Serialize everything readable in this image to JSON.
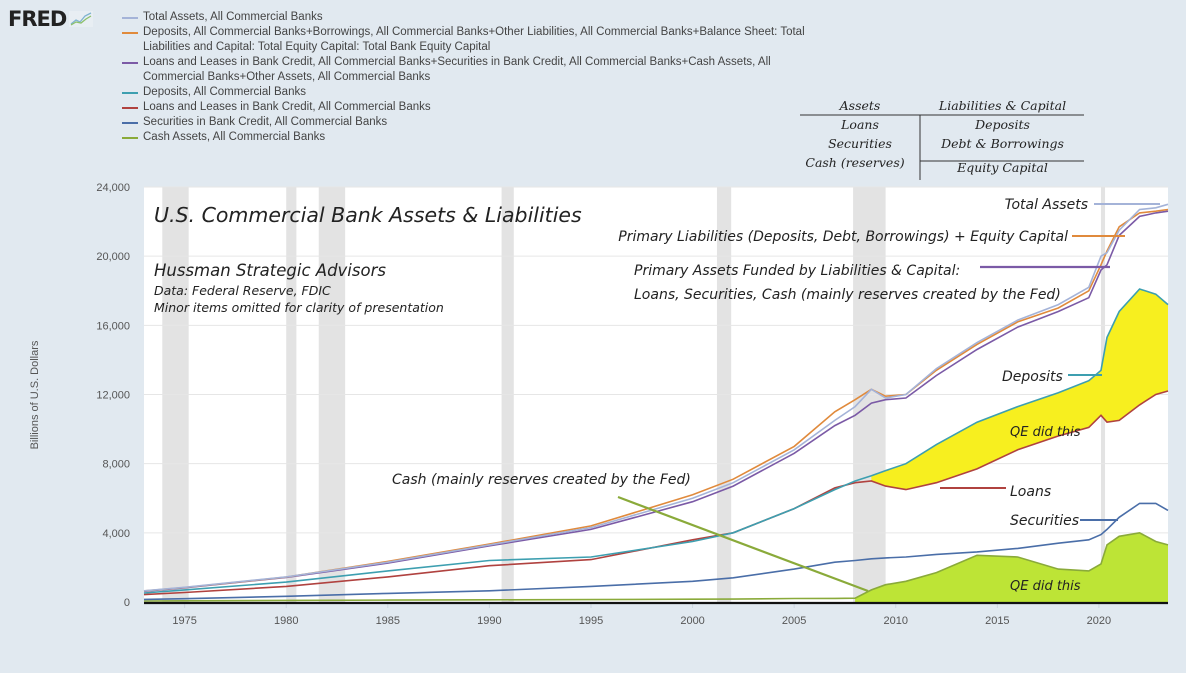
{
  "logo": {
    "text": "FRED",
    "icon": "line-chart-icon"
  },
  "legend": [
    {
      "label": "Total Assets, All Commercial Banks",
      "color": "#a4b3d8"
    },
    {
      "label": "Deposits, All Commercial Banks+Borrowings, All Commercial Banks+Other Liabilities, All Commercial Banks+Balance Sheet: Total Liabilities and Capital: Total Equity Capital: Total Bank Equity Capital",
      "color": "#e08a3c"
    },
    {
      "label": "Loans and Leases in Bank Credit, All Commercial Banks+Securities in Bank Credit, All Commercial Banks+Cash Assets, All Commercial Banks+Other Assets, All Commercial Banks",
      "color": "#7b5aa6"
    },
    {
      "label": "Deposits, All Commercial Banks",
      "color": "#3d9fb0"
    },
    {
      "label": "Loans and Leases in Bank Credit, All Commercial Banks",
      "color": "#b0423f"
    },
    {
      "label": "Securities in Bank Credit, All Commercial Banks",
      "color": "#4a6ea8"
    },
    {
      "label": "Cash Assets, All Commercial Banks",
      "color": "#8aaa3a"
    }
  ],
  "balance_sheet": {
    "assets_header": "Assets",
    "liabilities_header": "Liabilities & Capital",
    "assets": [
      "Loans",
      "Securities",
      "Cash (reserves)"
    ],
    "liabilities": [
      "Deposits",
      "Debt & Borrowings"
    ],
    "capital": "Equity Capital"
  },
  "chart_data": {
    "type": "line",
    "title": "U.S. Commercial Bank Assets & Liabilities",
    "subtitle": "Hussman Strategic Advisors",
    "source": "Data: Federal Reserve, FDIC",
    "note": "Minor items omitted for clarity of presentation",
    "xlabel": "",
    "ylabel": "Billions of U.S. Dollars",
    "xlim": [
      1973,
      2023.4
    ],
    "ylim": [
      0,
      24000
    ],
    "x_ticks": [
      "1975",
      "1980",
      "1985",
      "1990",
      "1995",
      "2000",
      "2005",
      "2010",
      "2015",
      "2020"
    ],
    "y_ticks": [
      "0",
      "4,000",
      "8,000",
      "12,000",
      "16,000",
      "20,000",
      "24,000"
    ],
    "grid": true,
    "recessions": [
      [
        1973.9,
        1975.2
      ],
      [
        1980.0,
        1980.5
      ],
      [
        1981.6,
        1982.9
      ],
      [
        1990.6,
        1991.2
      ],
      [
        2001.2,
        2001.9
      ],
      [
        2007.9,
        2009.5
      ],
      [
        2020.1,
        2020.3
      ]
    ],
    "x": [
      1973,
      1975,
      1980,
      1985,
      1990,
      1995,
      2000,
      2002,
      2005,
      2007,
      2008,
      2008.8,
      2009.5,
      2010.5,
      2012,
      2014,
      2016,
      2018,
      2019.5,
      2020.1,
      2020.4,
      2021,
      2022,
      2022.8,
      2023.4
    ],
    "series": [
      {
        "name": "Total Assets, All Commercial Banks",
        "color": "#a4b3d8",
        "values": [
          650,
          850,
          1450,
          2300,
          3300,
          4300,
          6000,
          6900,
          8800,
          10500,
          11300,
          12300,
          11800,
          12000,
          13500,
          15000,
          16300,
          17200,
          18200,
          20000,
          20200,
          21500,
          22700,
          22800,
          23000
        ]
      },
      {
        "name": "Primary Liabilities + Equity Capital",
        "color": "#e08a3c",
        "values": [
          640,
          840,
          1440,
          2350,
          3350,
          4400,
          6200,
          7100,
          9000,
          11000,
          11700,
          12300,
          11900,
          12000,
          13400,
          14900,
          16200,
          17000,
          18000,
          19500,
          20300,
          21700,
          22500,
          22600,
          22700
        ]
      },
      {
        "name": "Primary Assets Funded by Liabilities & Capital",
        "color": "#7b5aa6",
        "values": [
          620,
          820,
          1420,
          2250,
          3250,
          4200,
          5800,
          6700,
          8600,
          10200,
          10800,
          11500,
          11700,
          11800,
          13100,
          14600,
          15900,
          16800,
          17600,
          19200,
          19500,
          21200,
          22300,
          22500,
          22600
        ]
      },
      {
        "name": "Deposits",
        "color": "#3d9fb0",
        "values": [
          520,
          700,
          1150,
          1800,
          2400,
          2600,
          3500,
          4000,
          5400,
          6500,
          7000,
          7300,
          7600,
          8000,
          9100,
          10400,
          11300,
          12100,
          12800,
          13400,
          15300,
          16800,
          18100,
          17800,
          17200
        ]
      },
      {
        "name": "Loans",
        "color": "#b0423f",
        "values": [
          430,
          550,
          900,
          1450,
          2100,
          2450,
          3600,
          4000,
          5400,
          6600,
          6900,
          7000,
          6700,
          6500,
          6900,
          7700,
          8800,
          9600,
          10100,
          10800,
          10400,
          10500,
          11400,
          12000,
          12200
        ]
      },
      {
        "name": "Securities",
        "color": "#4a6ea8",
        "values": [
          150,
          190,
          330,
          500,
          650,
          900,
          1200,
          1400,
          1900,
          2300,
          2400,
          2500,
          2550,
          2600,
          2750,
          2900,
          3100,
          3400,
          3600,
          3900,
          4200,
          4900,
          5700,
          5700,
          5300
        ]
      },
      {
        "name": "Cash Assets",
        "color": "#8aaa3a",
        "values": [
          60,
          70,
          90,
          110,
          130,
          140,
          160,
          170,
          200,
          210,
          220,
          700,
          1000,
          1200,
          1700,
          2700,
          2600,
          1900,
          1800,
          2200,
          3300,
          3800,
          4000,
          3500,
          3300
        ]
      }
    ],
    "fill_labels": [
      "QE did this",
      "QE did this"
    ],
    "annotations": [
      {
        "text": "Total Assets",
        "color": "#a4b3d8"
      },
      {
        "text": "Primary Liabilities (Deposits, Debt, Borrowings) + Equity Capital",
        "color": "#e08a3c"
      },
      {
        "text": "Primary Assets Funded by Liabilities & Capital:",
        "color": "#7b5aa6"
      },
      {
        "text": "Loans, Securities, Cash (mainly reserves created by the Fed)",
        "color": "#7b5aa6"
      },
      {
        "text": "Deposits",
        "color": "#3d9fb0"
      },
      {
        "text": "Loans",
        "color": "#b0423f"
      },
      {
        "text": "Securities",
        "color": "#4a6ea8"
      },
      {
        "text": "Cash (mainly reserves created by the Fed)",
        "color": "#8aaa3a"
      }
    ],
    "fill_colors": {
      "deposits_minus_loans": "#f7ef1f",
      "cash": "#bde436"
    }
  }
}
